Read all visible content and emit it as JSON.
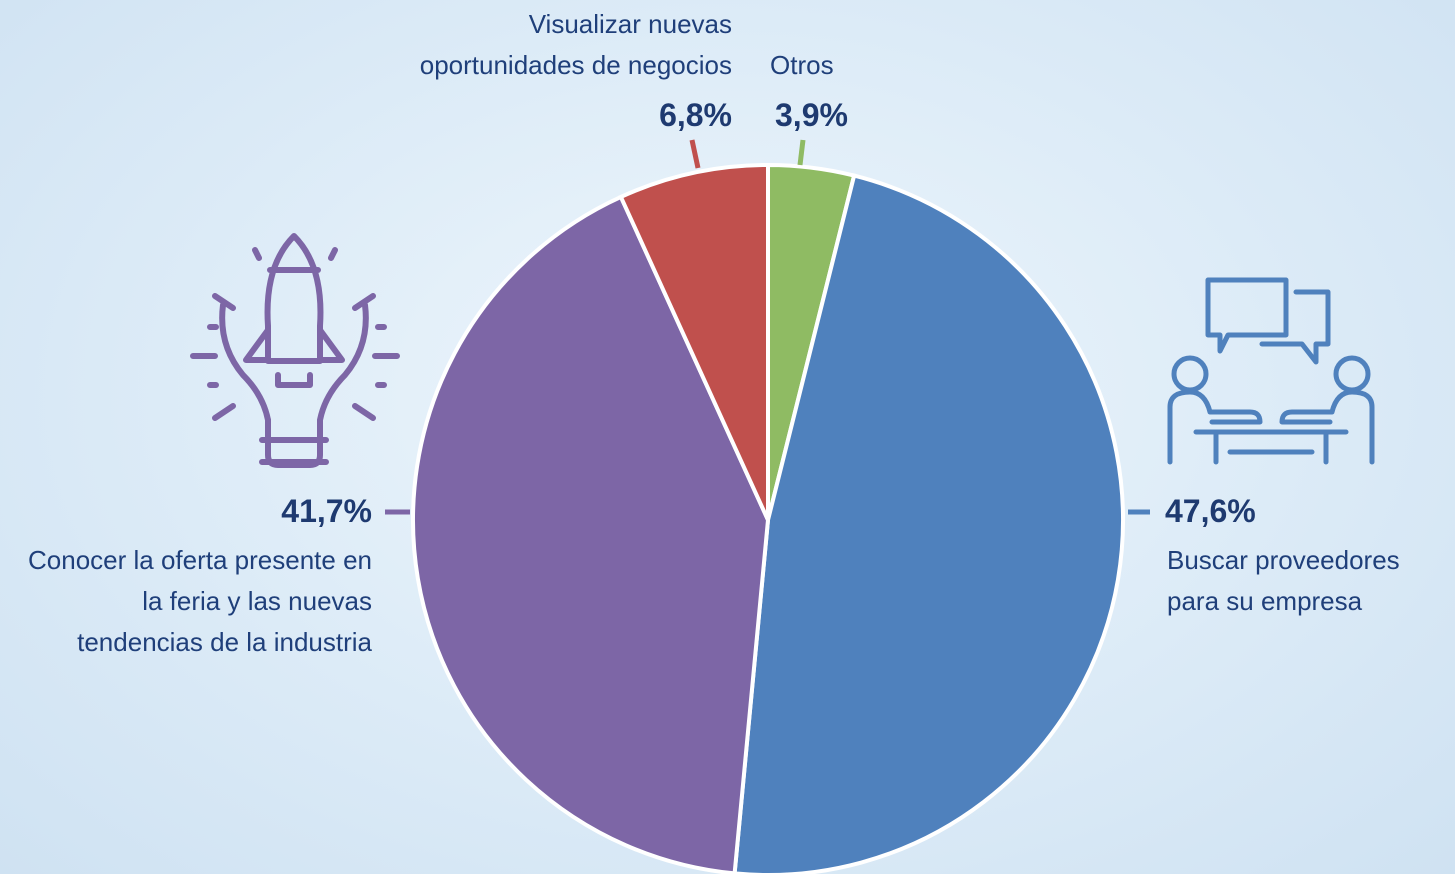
{
  "chart_data": {
    "type": "pie",
    "categories": [
      "Otros",
      "Buscar proveedores para su empresa",
      "Conocer la oferta presente en la feria y las nuevas tendencias de la industria",
      "Visualizar nuevas oportunidades de negocios"
    ],
    "values": [
      3.9,
      47.6,
      41.7,
      6.8
    ],
    "value_labels": [
      "3,9%",
      "47,6%",
      "41,7%",
      "6,8%"
    ],
    "colors": [
      "#8fbb63",
      "#4f81bd",
      "#7d66a6",
      "#c0504d"
    ]
  }
}
